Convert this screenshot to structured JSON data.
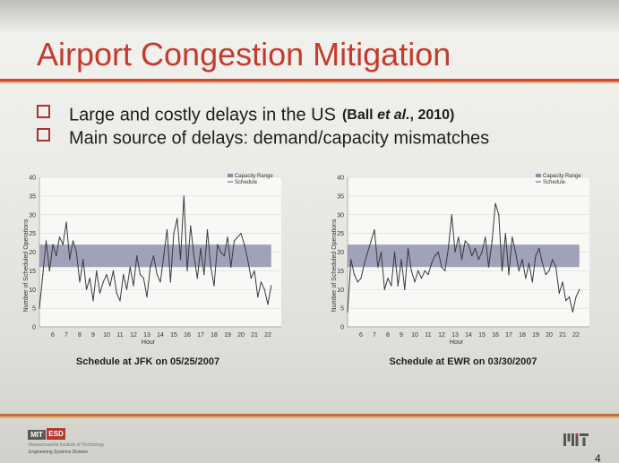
{
  "slide": {
    "title": "Airport Congestion Mitigation",
    "bullets": [
      {
        "text": "Large and costly delays in the US",
        "citation_prefix": "(Ball ",
        "citation_italic": "et al.",
        "citation_suffix": ", 2010)"
      },
      {
        "text": "Main source of delays: demand/capacity mismatches"
      }
    ],
    "footer": {
      "logo_mit": "MIT",
      "logo_esd": "ESD",
      "institute": "Massachusetts Institute of Technology",
      "division": "Engineering Systems Division",
      "page_number": "4"
    }
  },
  "chart_data": [
    {
      "type": "line",
      "caption": "Schedule at JFK on 05/25/2007",
      "xlabel": "Hour",
      "ylabel": "Number of Scheduled Operations",
      "ylim": [
        0,
        40
      ],
      "y_ticks": [
        "0",
        "5",
        "10",
        "15",
        "20",
        "25",
        "30",
        "35",
        "40"
      ],
      "xlim": [
        5,
        23
      ],
      "x_ticks": [
        "6",
        "7",
        "8",
        "9",
        "10",
        "11",
        "12",
        "13",
        "14",
        "15",
        "16",
        "17",
        "18",
        "19",
        "20",
        "21",
        "22"
      ],
      "grid": true,
      "legend": {
        "position": "top-right",
        "entries": [
          {
            "label": "Capacity Range",
            "kind": "band"
          },
          {
            "label": "Schedule",
            "kind": "line"
          }
        ]
      },
      "capacity_range": [
        16,
        22
      ],
      "series": [
        {
          "name": "Schedule",
          "x": [
            5,
            5.25,
            5.5,
            5.75,
            6,
            6.25,
            6.5,
            6.75,
            7,
            7.25,
            7.5,
            7.75,
            8,
            8.25,
            8.5,
            8.75,
            9,
            9.25,
            9.5,
            9.75,
            10,
            10.25,
            10.5,
            10.75,
            11,
            11.25,
            11.5,
            11.75,
            12,
            12.25,
            12.5,
            12.75,
            13,
            13.25,
            13.5,
            13.75,
            14,
            14.25,
            14.5,
            14.75,
            15,
            15.25,
            15.5,
            15.75,
            16,
            16.25,
            16.5,
            16.75,
            17,
            17.25,
            17.5,
            17.75,
            18,
            18.25,
            18.5,
            18.75,
            19,
            19.25,
            19.5,
            19.75,
            20,
            20.25,
            20.5,
            20.75,
            21,
            21.25,
            21.5,
            21.75,
            22,
            22.25
          ],
          "values": [
            5,
            14,
            23,
            15,
            22,
            19,
            24,
            22,
            28,
            18,
            23,
            20,
            12,
            18,
            10,
            13,
            7,
            15,
            9,
            12,
            14,
            11,
            15,
            9,
            7,
            14,
            10,
            16,
            11,
            19,
            14,
            13,
            8,
            16,
            19,
            14,
            12,
            19,
            26,
            12,
            25,
            29,
            18,
            35,
            15,
            27,
            19,
            13,
            21,
            14,
            26,
            16,
            11,
            22,
            20,
            19,
            24,
            16,
            23,
            24,
            25,
            22,
            18,
            13,
            15,
            8,
            12,
            10,
            6,
            11
          ]
        }
      ]
    },
    {
      "type": "line",
      "caption": "Schedule at EWR on 03/30/2007",
      "xlabel": "Hour",
      "ylabel": "Number of Scheduled Operations",
      "ylim": [
        0,
        40
      ],
      "y_ticks": [
        "0",
        "5",
        "10",
        "15",
        "20",
        "25",
        "30",
        "35",
        "40"
      ],
      "xlim": [
        5,
        23
      ],
      "x_ticks": [
        "6",
        "7",
        "8",
        "9",
        "10",
        "11",
        "12",
        "13",
        "14",
        "15",
        "16",
        "17",
        "18",
        "19",
        "20",
        "21",
        "22"
      ],
      "grid": true,
      "legend": {
        "position": "top-right",
        "entries": [
          {
            "label": "Capacity Range",
            "kind": "band"
          },
          {
            "label": "Schedule",
            "kind": "line"
          }
        ]
      },
      "capacity_range": [
        16,
        22
      ],
      "series": [
        {
          "name": "Schedule",
          "x": [
            5,
            5.25,
            5.5,
            5.75,
            6,
            6.25,
            6.5,
            6.75,
            7,
            7.25,
            7.5,
            7.75,
            8,
            8.25,
            8.5,
            8.75,
            9,
            9.25,
            9.5,
            9.75,
            10,
            10.25,
            10.5,
            10.75,
            11,
            11.25,
            11.5,
            11.75,
            12,
            12.25,
            12.5,
            12.75,
            13,
            13.25,
            13.5,
            13.75,
            14,
            14.25,
            14.5,
            14.75,
            15,
            15.25,
            15.5,
            15.75,
            16,
            16.25,
            16.5,
            16.75,
            17,
            17.25,
            17.5,
            17.75,
            18,
            18.25,
            18.5,
            18.75,
            19,
            19.25,
            19.5,
            19.75,
            20,
            20.25,
            20.5,
            20.75,
            21,
            21.25,
            21.5,
            21.75,
            22,
            22.25
          ],
          "values": [
            4,
            18,
            14,
            12,
            13,
            17,
            20,
            23,
            26,
            16,
            20,
            10,
            13,
            11,
            20,
            11,
            18,
            10,
            21,
            15,
            12,
            15,
            13,
            15,
            14,
            17,
            19,
            20,
            16,
            15,
            21,
            30,
            20,
            24,
            18,
            23,
            22,
            19,
            21,
            18,
            20,
            24,
            16,
            23,
            33,
            30,
            15,
            25,
            14,
            24,
            20,
            15,
            18,
            13,
            17,
            12,
            19,
            21,
            17,
            14,
            15,
            18,
            16,
            9,
            12,
            7,
            8,
            4,
            8,
            10
          ]
        }
      ]
    }
  ]
}
